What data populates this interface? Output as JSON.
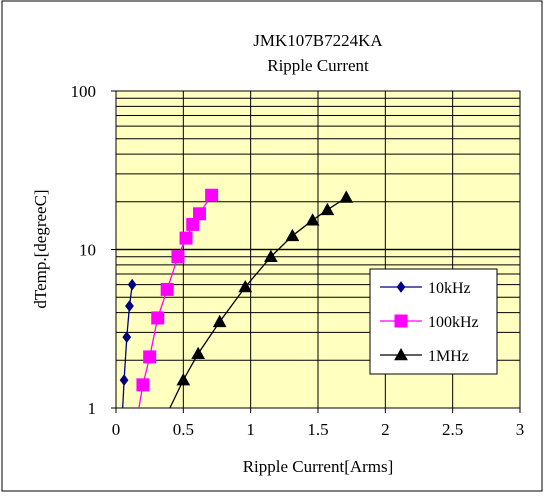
{
  "chart_data": {
    "type": "line",
    "title": "JMK107B7224KA",
    "subtitle": "Ripple Current",
    "xlabel": "Ripple Current[Arms]",
    "ylabel": "dTemp.[degreeC]",
    "xlim": [
      0,
      3
    ],
    "ylim": [
      1,
      100
    ],
    "yscale": "log",
    "grid": true,
    "legend_position": "right-middle",
    "x_ticks": [
      "0",
      "0.5",
      "1",
      "1.5",
      "2",
      "2.5",
      "3"
    ],
    "y_ticks": [
      "1",
      "10",
      "100"
    ],
    "series": [
      {
        "name": "10kHz",
        "color": "#000080",
        "marker": "diamond",
        "points": [
          [
            0.05,
            1.0
          ],
          [
            0.06,
            1.5
          ],
          [
            0.08,
            2.8
          ],
          [
            0.1,
            4.4
          ],
          [
            0.12,
            6.0
          ]
        ]
      },
      {
        "name": "100kHz",
        "color": "#ff00ff",
        "marker": "square",
        "points": [
          [
            0.17,
            1.0
          ],
          [
            0.2,
            1.4
          ],
          [
            0.25,
            2.1
          ],
          [
            0.31,
            3.7
          ],
          [
            0.38,
            5.6
          ],
          [
            0.46,
            9.0
          ],
          [
            0.52,
            11.8
          ],
          [
            0.57,
            14.4
          ],
          [
            0.62,
            16.8
          ],
          [
            0.71,
            22.0
          ]
        ]
      },
      {
        "name": "1MHz",
        "color": "#000000",
        "marker": "triangle",
        "points": [
          [
            0.4,
            1.0
          ],
          [
            0.5,
            1.5
          ],
          [
            0.61,
            2.2
          ],
          [
            0.77,
            3.5
          ],
          [
            0.96,
            5.8
          ],
          [
            1.15,
            9.0
          ],
          [
            1.31,
            12.2
          ],
          [
            1.46,
            15.3
          ],
          [
            1.57,
            17.8
          ],
          [
            1.71,
            21.3
          ]
        ]
      }
    ]
  }
}
